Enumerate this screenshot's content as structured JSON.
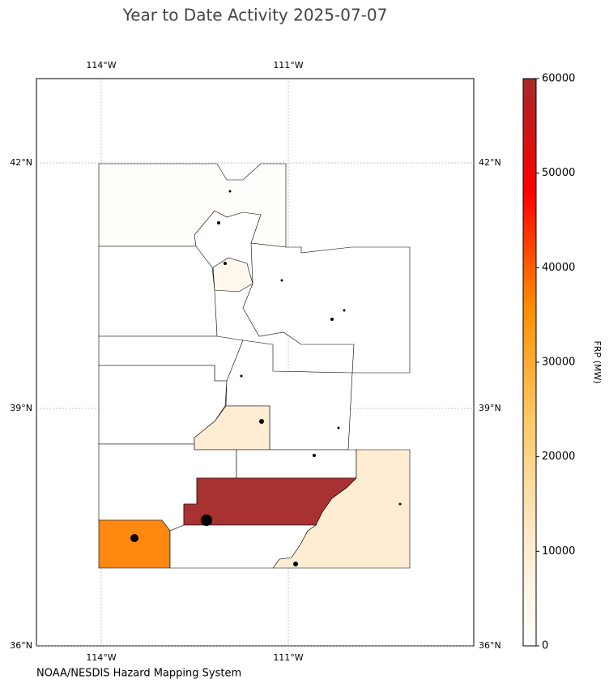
{
  "map": {
    "title": "Year to Date Activity 2025-07-07",
    "lon_ticks": [
      {
        "value": -114,
        "label": "114°W"
      },
      {
        "value": -111,
        "label": "111°W"
      }
    ],
    "lat_ticks": [
      {
        "value": 42,
        "label": "42°N"
      },
      {
        "value": 39,
        "label": "39°N"
      },
      {
        "value": 36,
        "label": "36°N"
      }
    ],
    "colorbar": {
      "label": "FRP (MW)",
      "lim": [
        0,
        60000
      ],
      "ticks": [
        0,
        10000,
        20000,
        30000,
        40000,
        50000,
        60000
      ],
      "colors": [
        "#ffffff",
        "#fee9c8",
        "#fdc866",
        "#ff8c00",
        "#ff0000",
        "#a52a2a"
      ]
    },
    "credit": "NOAA/NESDIS Hazard Mapping System"
  }
}
